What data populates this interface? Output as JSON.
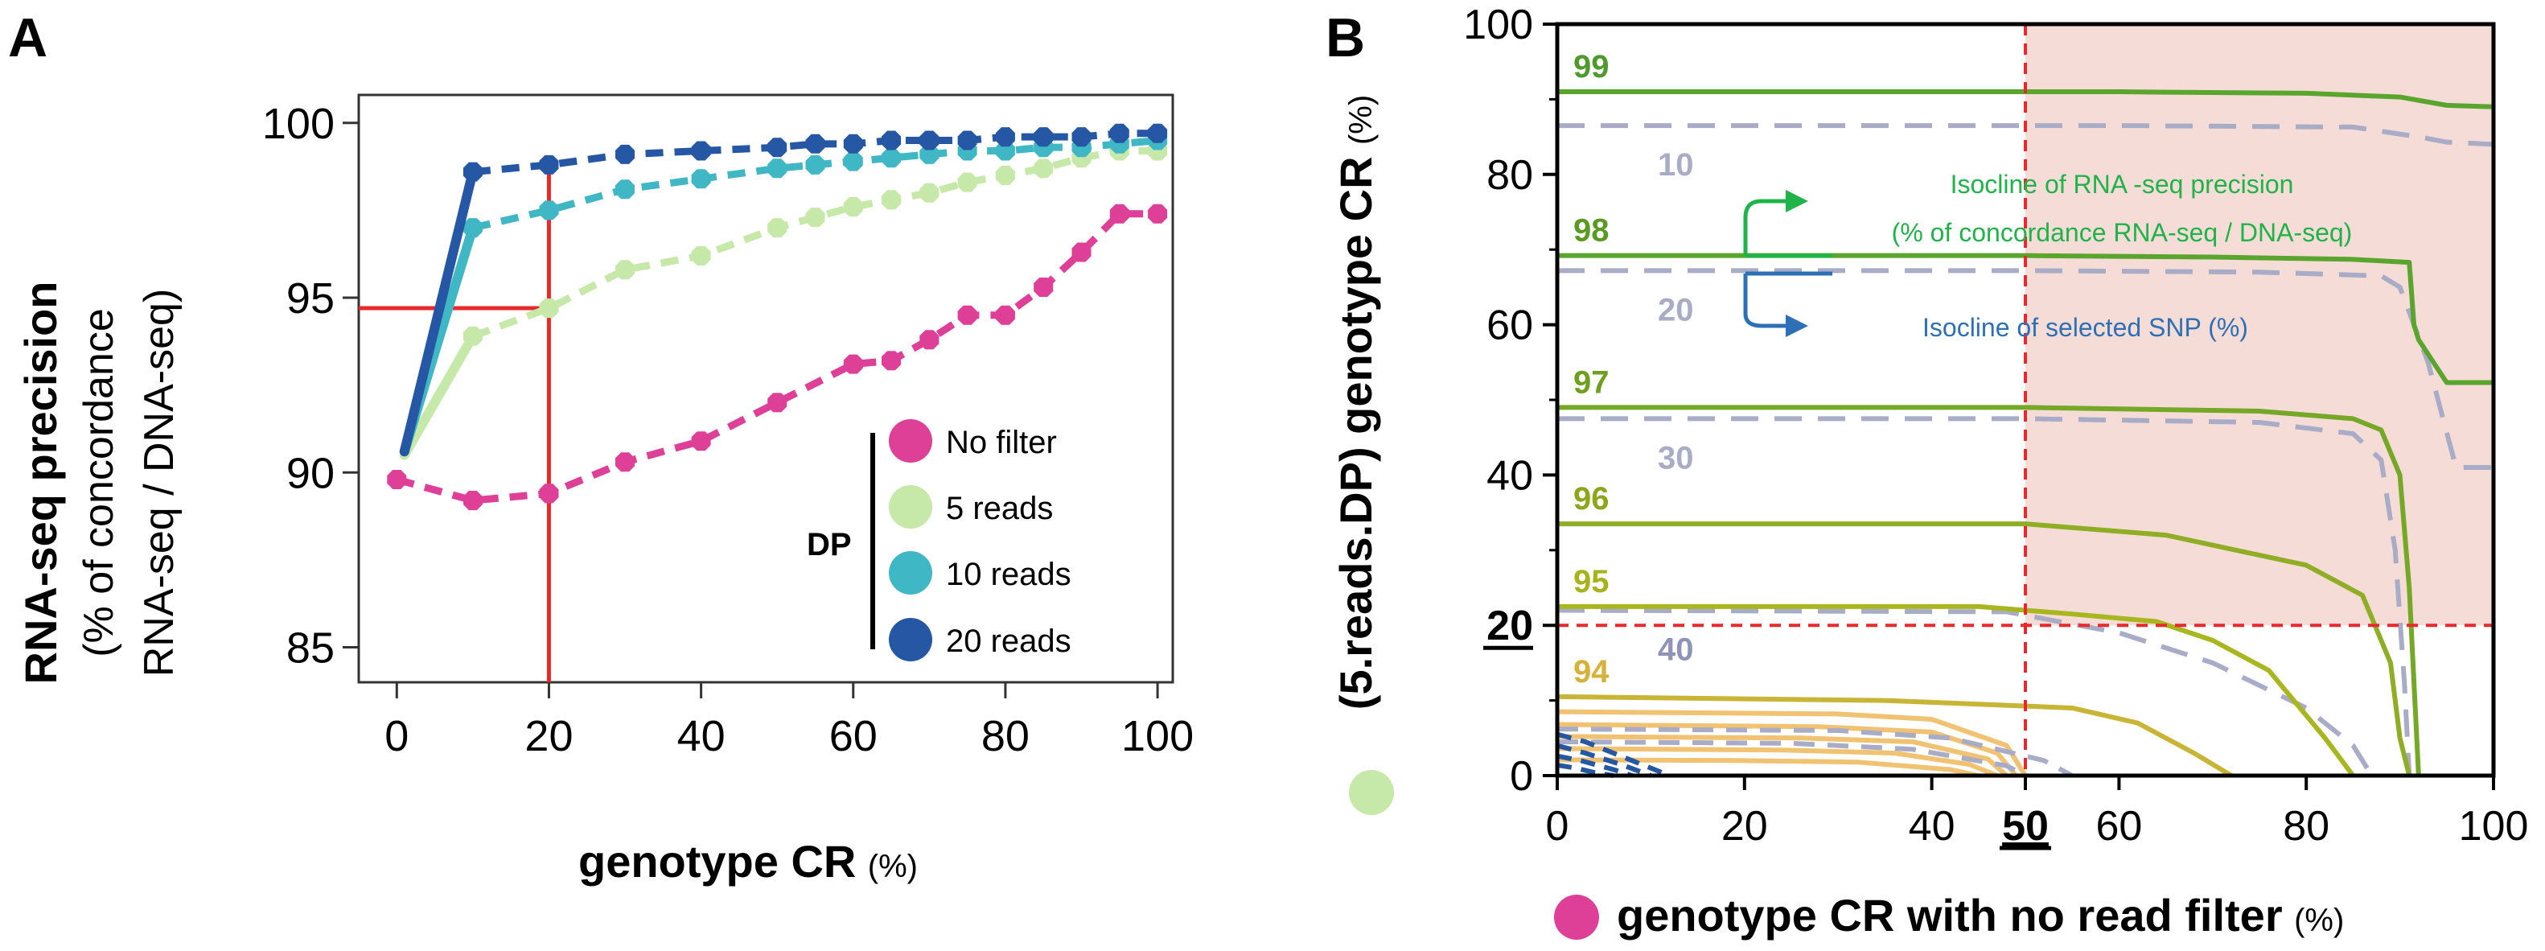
{
  "panels": {
    "a_label": "A",
    "b_label": "B"
  },
  "colors": {
    "no_filter": "#de3f97",
    "reads5": "#c6e8a8",
    "reads10": "#3fb7c4",
    "reads20": "#2557a4",
    "red": "#e8282b",
    "dashed_red": "#e8282b",
    "shade": "#f6dcd7",
    "green_label": "#4f9a2c",
    "gray_label": "#a9acc6",
    "iso_green": "#1fb34a",
    "iso_blue": "#2d70b5",
    "orange": "#f1c271"
  },
  "chart_data": [
    {
      "type": "scatter",
      "panel": "A",
      "title": "",
      "ylabel_main": "RNA-seq precision",
      "ylabel_sub1": "(% of concordance",
      "ylabel_sub2": "RNA-seq / DNA-seq)",
      "xlabel_main": "genotype CR",
      "xlabel_unit": "(%)",
      "xlim": [
        -5,
        102
      ],
      "ylim": [
        84,
        100.8
      ],
      "xticks": [
        0,
        20,
        40,
        60,
        80,
        100
      ],
      "yticks": [
        85,
        90,
        95,
        100
      ],
      "xtick_labels": [
        "0",
        "20",
        "40",
        "60",
        "80",
        "100"
      ],
      "ytick_labels": [
        "85",
        "90",
        "95",
        "100"
      ],
      "legend_title": "DP",
      "legend_position": "lower-right",
      "series": [
        {
          "name": "No filter",
          "color_key": "no_filter",
          "x": [
            0,
            10,
            20,
            30,
            40,
            50,
            60,
            65,
            70,
            75,
            80,
            85,
            90,
            95,
            100
          ],
          "y": [
            89.8,
            89.2,
            89.4,
            90.3,
            90.9,
            92.0,
            93.1,
            93.2,
            93.8,
            94.5,
            94.5,
            95.3,
            96.3,
            97.4,
            97.4
          ]
        },
        {
          "name": "5 reads",
          "color_key": "reads5",
          "x": [
            1,
            10,
            20,
            30,
            40,
            50,
            55,
            60,
            65,
            70,
            75,
            80,
            85,
            90,
            95,
            100
          ],
          "y": [
            90.5,
            93.9,
            94.7,
            95.8,
            96.2,
            97.0,
            97.3,
            97.6,
            97.8,
            98.0,
            98.3,
            98.5,
            98.7,
            99.0,
            99.2,
            99.2
          ]
        },
        {
          "name": "10 reads",
          "color_key": "reads10",
          "x": [
            1,
            10,
            20,
            30,
            40,
            50,
            55,
            60,
            65,
            70,
            75,
            80,
            85,
            90,
            95,
            100
          ],
          "y": [
            90.6,
            97.0,
            97.5,
            98.1,
            98.4,
            98.7,
            98.8,
            98.9,
            99.0,
            99.1,
            99.2,
            99.2,
            99.3,
            99.3,
            99.4,
            99.5
          ]
        },
        {
          "name": "20 reads",
          "color_key": "reads20",
          "x": [
            1,
            10,
            20,
            30,
            40,
            50,
            55,
            60,
            65,
            70,
            75,
            80,
            85,
            90,
            95,
            100
          ],
          "y": [
            90.6,
            98.6,
            98.8,
            99.1,
            99.2,
            99.3,
            99.4,
            99.4,
            99.5,
            99.5,
            99.5,
            99.6,
            99.6,
            99.6,
            99.7,
            99.7
          ]
        }
      ],
      "annotations": {
        "ref_x": 20,
        "ref_y": 94.7
      }
    },
    {
      "type": "line",
      "panel": "B",
      "ylabel_main": "(5.reads.DP) genotype CR",
      "ylabel_unit": "(%)",
      "xlabel_main": "genotype CR with no read filter",
      "xlabel_unit": "(%)",
      "xlim": [
        0,
        100
      ],
      "ylim": [
        0,
        100
      ],
      "xticks": [
        0,
        20,
        40,
        50,
        60,
        80,
        100
      ],
      "yticks": [
        0,
        20,
        40,
        60,
        80,
        100
      ],
      "xtick_labels": [
        "0",
        "20",
        "40",
        "50",
        "60",
        "80",
        "100"
      ],
      "ytick_labels": [
        "0",
        "20",
        "40",
        "60",
        "80",
        "100"
      ],
      "highlight_x": 50,
      "highlight_y": 20,
      "shaded_region": {
        "x_from": 50,
        "x_to": 100,
        "y_from": 20,
        "y_to": 100
      },
      "precision_isoclines": [
        {
          "label": "99",
          "x": [
            0,
            60,
            80,
            90,
            95,
            100
          ],
          "y": [
            91,
            91,
            90.8,
            90.3,
            89.2,
            89
          ]
        },
        {
          "label": "98",
          "x": [
            0,
            50,
            70,
            85,
            91,
            91.5,
            92,
            95,
            100
          ],
          "y": [
            69.2,
            69.2,
            69,
            68.7,
            68.3,
            60,
            58,
            52.3,
            52.3
          ]
        },
        {
          "label": "97",
          "x": [
            0,
            50,
            75,
            85,
            88,
            90,
            91,
            92
          ],
          "y": [
            49,
            49,
            48.5,
            47.5,
            46,
            40,
            25,
            0
          ]
        },
        {
          "label": "96",
          "x": [
            0,
            50,
            65,
            80,
            86,
            89,
            90,
            91
          ],
          "y": [
            33.5,
            33.5,
            32,
            28,
            24,
            15,
            5,
            0
          ]
        },
        {
          "label": "95",
          "x": [
            0,
            45,
            55,
            64,
            70,
            76,
            82,
            85
          ],
          "y": [
            22.5,
            22.5,
            21.5,
            20.5,
            18,
            14,
            5,
            0
          ]
        },
        {
          "label": "94",
          "x": [
            0,
            35,
            45,
            55,
            62,
            68,
            72
          ],
          "y": [
            10.5,
            10,
            9.5,
            9,
            7,
            3,
            0
          ]
        }
      ],
      "snp_isoclines": [
        {
          "label": "10",
          "x": [
            0,
            60,
            85,
            92,
            95,
            100
          ],
          "y": [
            86.5,
            86.5,
            86.3,
            85,
            84.3,
            84
          ]
        },
        {
          "label": "20",
          "x": [
            0,
            50,
            75,
            88,
            90,
            93,
            96,
            100
          ],
          "y": [
            67.2,
            67.2,
            67,
            66.5,
            65,
            55,
            41,
            41
          ]
        },
        {
          "label": "30",
          "x": [
            0,
            50,
            75,
            85,
            88,
            89.5,
            90.5,
            91
          ],
          "y": [
            47.5,
            47.5,
            47,
            45.5,
            42,
            30,
            12,
            0
          ]
        },
        {
          "label": "40",
          "x": [
            0,
            48,
            60,
            70,
            80,
            85,
            87
          ],
          "y": [
            22,
            21.8,
            19,
            15,
            9,
            4,
            0
          ]
        }
      ],
      "bottom_curves": {
        "orange": [
          {
            "x": [
              0,
              30,
              40,
              48,
              50
            ],
            "y": [
              8.5,
              8.2,
              7.5,
              4,
              0
            ]
          },
          {
            "x": [
              0,
              28,
              40,
              47,
              49
            ],
            "y": [
              6.8,
              6.5,
              5.8,
              3,
              0
            ]
          },
          {
            "x": [
              0,
              26,
              38,
              46,
              48
            ],
            "y": [
              5.2,
              5,
              4.5,
              2.2,
              0
            ]
          },
          {
            "x": [
              0,
              24,
              36,
              44,
              47
            ],
            "y": [
              3.6,
              3.4,
              3,
              1.5,
              0
            ]
          },
          {
            "x": [
              0,
              20,
              32,
              42,
              45
            ],
            "y": [
              2.1,
              2,
              1.8,
              0.8,
              0
            ]
          }
        ],
        "gray": [
          {
            "x": [
              0,
              30,
              42,
              52,
              55
            ],
            "y": [
              6.2,
              6,
              5,
              2,
              0
            ]
          },
          {
            "x": [
              0,
              25,
              38,
              48,
              50
            ],
            "y": [
              4.5,
              4.3,
              3.5,
              1.3,
              0
            ]
          }
        ],
        "blue": [
          {
            "x": [
              0,
              3,
              8,
              12
            ],
            "y": [
              5.5,
              4.5,
              2,
              0
            ]
          },
          {
            "x": [
              0,
              3,
              7,
              10
            ],
            "y": [
              4,
              3,
              1.4,
              0
            ]
          },
          {
            "x": [
              0,
              2.5,
              6,
              8
            ],
            "y": [
              2.6,
              2,
              0.8,
              0
            ]
          },
          {
            "x": [
              0,
              2,
              4,
              6
            ],
            "y": [
              1.4,
              1,
              0.4,
              0
            ]
          }
        ]
      },
      "isocline_legend": {
        "precision_line1": "Isocline of RNA -seq precision",
        "precision_line2": "(% of concordance RNA-seq / DNA-seq)",
        "snp": "Isocline of selected SNP (%)"
      }
    }
  ]
}
